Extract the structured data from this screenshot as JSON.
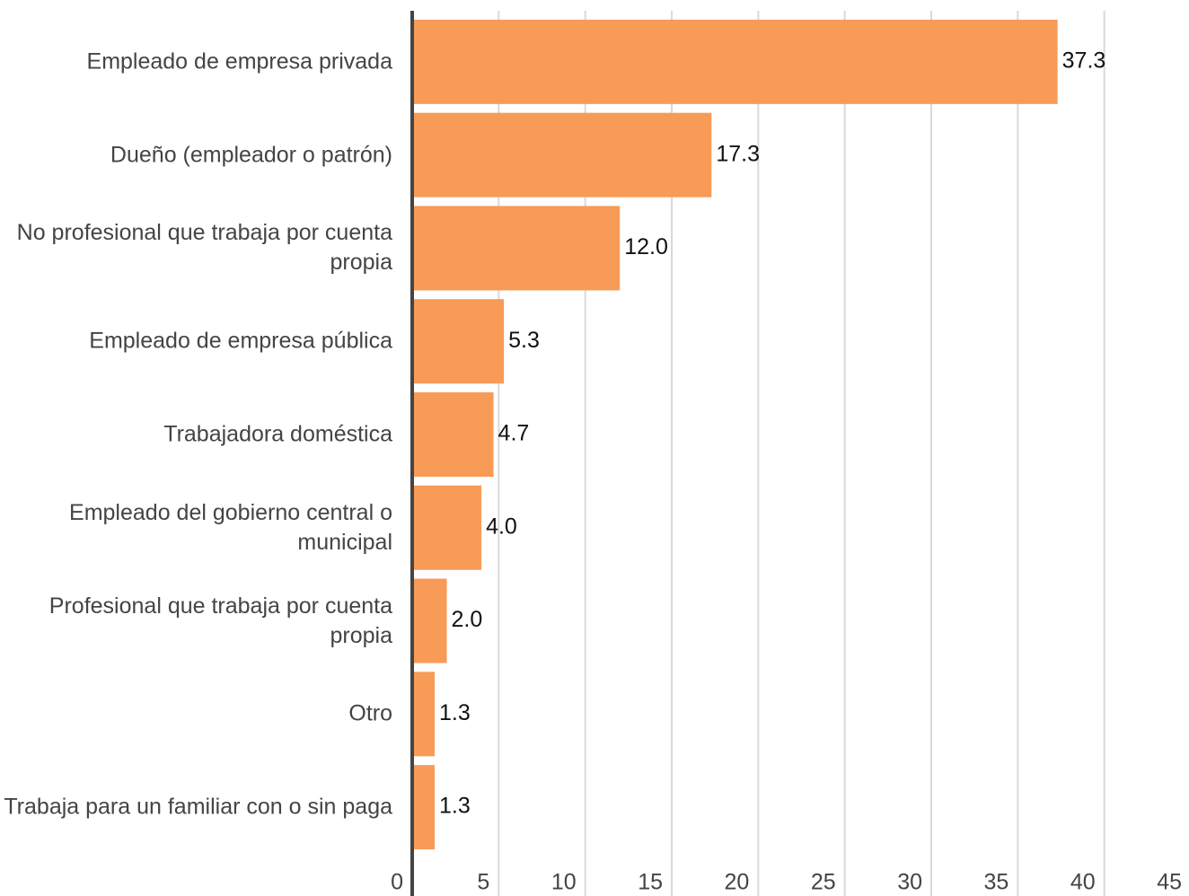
{
  "chart_data": {
    "type": "bar",
    "orientation": "horizontal",
    "categories": [
      "Empleado de empresa privada",
      "Dueño (empleador o patrón)",
      "No profesional que trabaja por cuenta propia",
      "Empleado de empresa pública",
      "Trabajadora doméstica",
      "Empleado del gobierno central o municipal",
      "Profesional que trabaja por cuenta propia",
      "Otro",
      "Trabaja para un familiar con o sin paga"
    ],
    "values": [
      37.3,
      17.3,
      12.0,
      5.3,
      4.7,
      4.0,
      2.0,
      1.3,
      1.3
    ],
    "value_labels": [
      "37.3",
      "17.3",
      "12.0",
      "5.3",
      "4.7",
      "4.0",
      "2.0",
      "1.3",
      "1.3"
    ],
    "color": "#f79b57",
    "xlim": [
      0,
      45
    ],
    "xticks": [
      0,
      5,
      10,
      15,
      20,
      25,
      30,
      35,
      40,
      45
    ],
    "grid": true
  }
}
